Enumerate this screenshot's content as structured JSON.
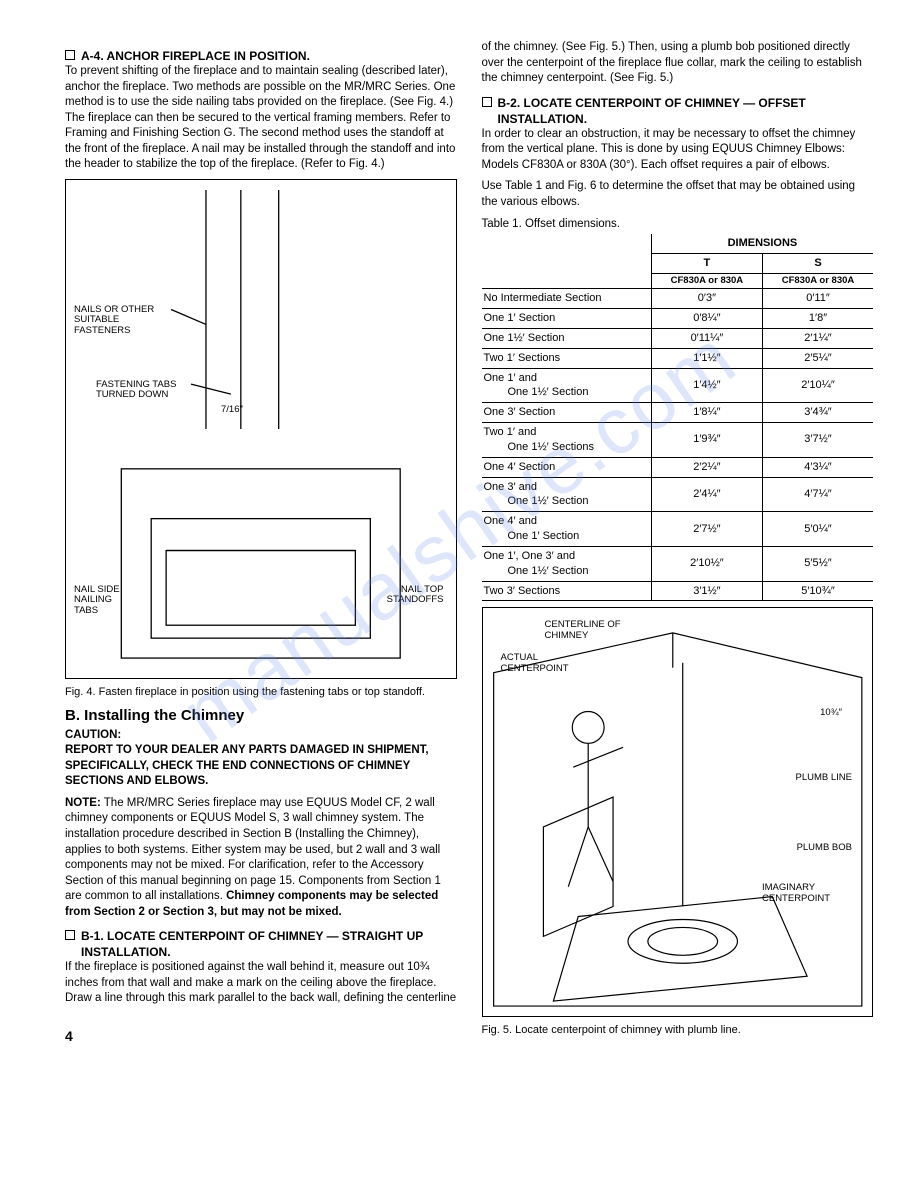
{
  "watermark": "manualshive.com",
  "left_column": {
    "a4_title": "A-4. ANCHOR FIREPLACE IN POSITION.",
    "a4_body": "To prevent shifting of the fireplace and to maintain sealing (described later), anchor the fireplace. Two methods are possible on the MR/MRC Series. One method is to use the side nailing tabs provided on the fireplace. (See Fig. 4.) The fireplace can then be secured to the vertical framing members. Refer to Framing and Finishing Section G. The second method uses the standoff at the front of the fireplace. A nail may be installed through the standoff and into the header to stabilize the top of the fireplace. (Refer to Fig. 4.)",
    "fig4_labels": {
      "nails": "NAILS OR OTHER SUITABLE FASTENERS",
      "tabs": "FASTENING TABS TURNED DOWN",
      "dimension": "7/16\"",
      "nailside": "NAIL SIDE NAILING TABS",
      "nailtop": "NAIL TOP STANDOFFS"
    },
    "fig4_caption": "Fig. 4.  Fasten fireplace in position using the fastening tabs or top standoff.",
    "b_heading": "B.  Installing the Chimney",
    "caution": "CAUTION:",
    "caution_body": "REPORT TO YOUR DEALER ANY PARTS DAMAGED IN SHIPMENT, SPECIFICALLY, CHECK THE END CONNECTIONS OF CHIMNEY SECTIONS AND ELBOWS.",
    "note_label": "NOTE:",
    "note_body": " The MR/MRC Series fireplace may use EQUUS Model CF, 2 wall chimney components or EQUUS Model S, 3 wall chimney system. The installation procedure described in Section B (Installing the Chimney), applies to both systems. Either system may be used, but 2 wall and 3 wall components may not be mixed. For clarification, refer to the Accessory Section of this manual beginning on page 15. Components from Section 1 are common to all installations. ",
    "note_bold_tail": "Chimney components may be selected from Section 2 or Section 3, but may not be mixed.",
    "b1_title": "B-1. LOCATE CENTERPOINT OF CHIMNEY — STRAIGHT UP INSTALLATION.",
    "b1_body": "If the fireplace is positioned against the wall behind it, measure out 10¾ inches from that wall and make a mark on the ceiling above the fireplace. Draw a line through this mark parallel to the back wall, defining the centerline"
  },
  "right_column": {
    "continuation": "of the chimney. (See Fig. 5.) Then, using a plumb bob positioned directly over the centerpoint of the fireplace flue collar, mark the ceiling to establish the chimney centerpoint. (See Fig. 5.)",
    "b2_title": "B-2. LOCATE CENTERPOINT OF CHIMNEY — OFFSET INSTALLATION.",
    "b2_body1": "In order to clear an obstruction, it may be necessary to offset the chimney from the vertical plane. This is done by using EQUUS Chimney Elbows: Models CF830A or 830A (30°). Each offset requires a pair of elbows.",
    "b2_body2": "Use Table 1 and Fig. 6 to determine the offset that may be obtained using the various elbows.",
    "table_caption": "Table 1.  Offset dimensions.",
    "table": {
      "dim_header": "DIMENSIONS",
      "col_t": "T",
      "col_s": "S",
      "sub_t": "CF830A or 830A",
      "sub_s": "CF830A or 830A",
      "rows": [
        {
          "desc": "No Intermediate Section",
          "t": "0′3″",
          "s": "0′11″"
        },
        {
          "desc": "One 1′ Section",
          "t": "0′8¼″",
          "s": "1′8″"
        },
        {
          "desc": "One 1½′ Section",
          "t": "0′11¼″",
          "s": "2′1¼″"
        },
        {
          "desc": "Two 1′ Sections",
          "t": "1′1½″",
          "s": "2′5¼″"
        },
        {
          "desc": "One 1′ and One 1½′ Section",
          "t": "1′4½″",
          "s": "2′10¼″"
        },
        {
          "desc": "One 3′ Section",
          "t": "1′8¼″",
          "s": "3′4¾″"
        },
        {
          "desc": "Two 1′ and One 1½′ Sections",
          "t": "1′9¾″",
          "s": "3′7½″"
        },
        {
          "desc": "One 4′ Section",
          "t": "2′2¼″",
          "s": "4′3¼″"
        },
        {
          "desc": "One 3′ and One 1½′ Section",
          "t": "2′4¼″",
          "s": "4′7¼″"
        },
        {
          "desc": "One 4′ and One 1′ Section",
          "t": "2′7½″",
          "s": "5′0¼″"
        },
        {
          "desc": "One 1′, One 3′ and One 1½′ Section",
          "t": "2′10½″",
          "s": "5′5½″"
        },
        {
          "desc": "Two 3′ Sections",
          "t": "3′1½″",
          "s": "5′10¾″"
        }
      ]
    },
    "fig5_labels": {
      "centerline": "CENTERLINE OF CHIMNEY",
      "actual": "ACTUAL CENTERPOINT",
      "dim": "10¾″",
      "plumbline": "PLUMB LINE",
      "plumbbob": "PLUMB BOB",
      "imaginary": "IMAGINARY CENTERPOINT"
    },
    "fig5_caption": "Fig. 5.  Locate centerpoint of chimney with plumb line."
  },
  "page_number": "4"
}
